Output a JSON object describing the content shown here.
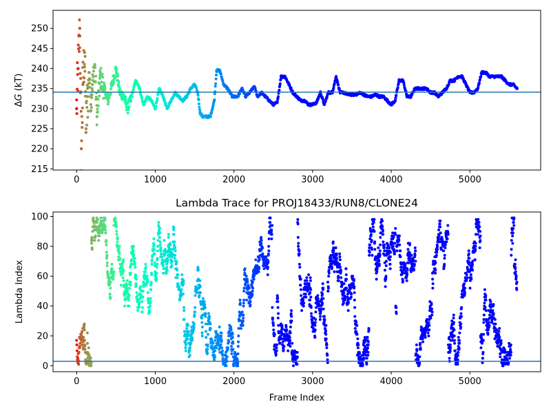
{
  "chart_data": [
    {
      "type": "scatter",
      "title": "",
      "xlabel": "",
      "ylabel": "ΔG (kT)",
      "ylabel_math": {
        "delta": "Δ",
        "var": "G",
        "unit": " (kT)"
      },
      "xlim": [
        -300,
        5900
      ],
      "ylim": [
        214.7,
        254.5
      ],
      "xticks": [
        0,
        1000,
        2000,
        3000,
        4000,
        5000
      ],
      "xtick_labels": [
        "0",
        "1000",
        "2000",
        "3000",
        "4000",
        "5000"
      ],
      "yticks": [
        215,
        220,
        225,
        230,
        235,
        240,
        245,
        250
      ],
      "ytick_labels": [
        "215",
        "220",
        "225",
        "230",
        "235",
        "240",
        "245",
        "250"
      ],
      "grid": false,
      "colormap": "rainbow (reversed, colored by frame index)",
      "hline": {
        "y": 234.1,
        "color": "#1f77b4"
      },
      "series": [
        {
          "description": "free energy estimate per frame",
          "x": [
            0,
            20,
            40,
            60,
            80,
            100,
            120,
            140,
            160,
            180,
            200,
            230,
            260,
            300,
            350,
            400,
            450,
            500,
            550,
            600,
            650,
            700,
            750,
            800,
            850,
            900,
            950,
            1000,
            1050,
            1100,
            1150,
            1200,
            1250,
            1300,
            1350,
            1400,
            1450,
            1500,
            1540,
            1570,
            1600,
            1650,
            1700,
            1750,
            1780,
            1820,
            1870,
            1920,
            1980,
            2050,
            2100,
            2150,
            2200,
            2260,
            2300,
            2350,
            2400,
            2450,
            2500,
            2550,
            2600,
            2650,
            2700,
            2750,
            2800,
            2850,
            2900,
            2950,
            3000,
            3050,
            3100,
            3150,
            3200,
            3250,
            3300,
            3350,
            3400,
            3450,
            3500,
            3550,
            3600,
            3650,
            3700,
            3750,
            3800,
            3850,
            3900,
            3950,
            4000,
            4050,
            4100,
            4150,
            4200,
            4250,
            4300,
            4350,
            4400,
            4450,
            4500,
            4550,
            4600,
            4650,
            4700,
            4750,
            4800,
            4850,
            4900,
            4950,
            5000,
            5050,
            5100,
            5150,
            5200,
            5250,
            5300,
            5350,
            5400,
            5450,
            5500,
            5550,
            5600
          ],
          "y": [
            230,
            240,
            250,
            220,
            236,
            244,
            225,
            233,
            239,
            231,
            236,
            241,
            228,
            238,
            235,
            232,
            236,
            240,
            234,
            233,
            230,
            233,
            237,
            235,
            231,
            233,
            232,
            230,
            235,
            233,
            230,
            232,
            234,
            233,
            232,
            233,
            235,
            236,
            234,
            229,
            228,
            228,
            228,
            232,
            239.5,
            239.5,
            236,
            235,
            233,
            233,
            235,
            233,
            234,
            235.5,
            233,
            234,
            233,
            232,
            231,
            231.5,
            238,
            238,
            236,
            234,
            233,
            232,
            232,
            231,
            231,
            231.5,
            234,
            231,
            234,
            234,
            238,
            234,
            234,
            233.5,
            233.5,
            233.5,
            234,
            233.5,
            233,
            233,
            233.5,
            233,
            233,
            232,
            231,
            232,
            237,
            237,
            233,
            233,
            235,
            235,
            235,
            235,
            234,
            234,
            233,
            234,
            235,
            237,
            237,
            238,
            238,
            236,
            234,
            234,
            235,
            239,
            239,
            238,
            238,
            238,
            238,
            237,
            236,
            236,
            235
          ]
        }
      ]
    },
    {
      "type": "scatter",
      "title": "Lambda Trace for PROJ18433/RUN8/CLONE24",
      "xlabel": "Frame Index",
      "ylabel": "Lambda Index",
      "xlim": [
        -300,
        5900
      ],
      "ylim": [
        -4,
        103
      ],
      "xticks": [
        0,
        1000,
        2000,
        3000,
        4000,
        5000
      ],
      "xtick_labels": [
        "0",
        "1000",
        "2000",
        "3000",
        "4000",
        "5000"
      ],
      "yticks": [
        0,
        20,
        40,
        60,
        80,
        100
      ],
      "ytick_labels": [
        "0",
        "20",
        "40",
        "60",
        "80",
        "100"
      ],
      "grid": false,
      "colormap": "rainbow (reversed, colored by frame index)",
      "hline": {
        "y": 3,
        "color": "#1f77b4"
      },
      "series": [
        {
          "description": "lambda window visited per frame; dense random-walk trace between 0 and 99",
          "x_range": [
            0,
            5600
          ],
          "y_range": [
            0,
            99
          ],
          "point_count": 5600
        }
      ]
    }
  ]
}
